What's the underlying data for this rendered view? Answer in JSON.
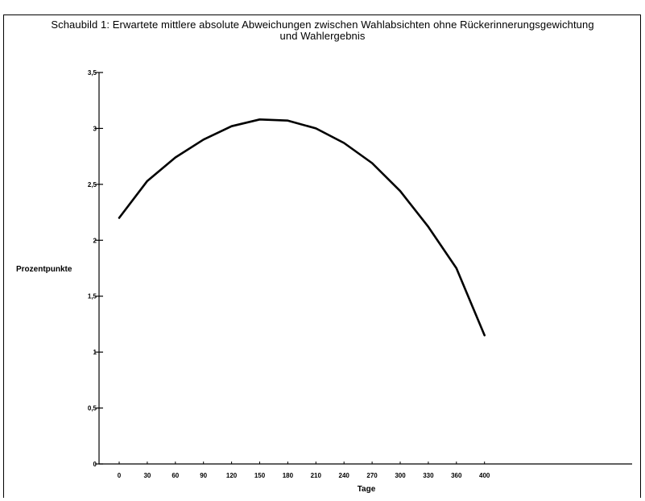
{
  "chart_data": {
    "type": "line",
    "title_line1": "Schaubild 1: Erwartete mittlere absolute Abweichungen zwischen Wahlabsichten ohne Rückerinnerungsgewichtung",
    "title_line2": "und Wahlergebnis",
    "xlabel": "Tage",
    "ylabel": "Prozentpunkte",
    "x_tick_labels": [
      "0",
      "30",
      "60",
      "90",
      "120",
      "150",
      "180",
      "210",
      "240",
      "270",
      "300",
      "330",
      "360",
      "400"
    ],
    "y_tick_labels": [
      "0",
      "0,5",
      "1",
      "1,5",
      "2",
      "2,5",
      "3",
      "3,5"
    ],
    "ylim": [
      0,
      3.5
    ],
    "grid": false,
    "series": [
      {
        "x": [
          0,
          30,
          60,
          90,
          120,
          150,
          180,
          210,
          240,
          270,
          300,
          330,
          360,
          390
        ],
        "y": [
          2.2,
          2.53,
          2.74,
          2.9,
          3.02,
          3.08,
          3.07,
          3.0,
          2.87,
          2.69,
          2.44,
          2.12,
          1.75,
          1.15
        ]
      }
    ]
  }
}
